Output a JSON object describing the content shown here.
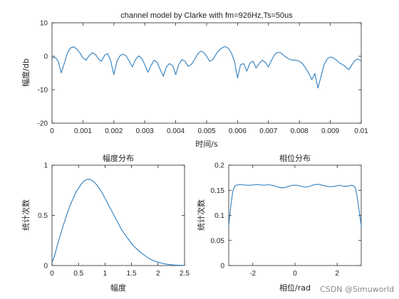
{
  "watermark": "CSDN @Simuworld",
  "colors": {
    "line": "#2f7fbf",
    "axis": "#262626",
    "background": "#ffffff"
  },
  "chart_data": [
    {
      "type": "line",
      "title": "channel model by Clarke with fm=926Hz,Ts=50us",
      "xlabel": "时间/s",
      "ylabel": "幅度/db",
      "xlim": [
        0,
        0.01
      ],
      "ylim": [
        -20,
        10
      ],
      "xticks": [
        "0",
        "0.001",
        "0.002",
        "0.003",
        "0.004",
        "0.005",
        "0.006",
        "0.007",
        "0.008",
        "0.009",
        "0.01"
      ],
      "yticks": [
        "-20",
        "-10",
        "0",
        "10"
      ],
      "grid": false,
      "series": [
        {
          "x": [
            0,
            0.0001,
            0.0002,
            0.0003,
            0.0004,
            0.0005,
            0.0006,
            0.0007,
            0.0008,
            0.0009,
            0.001,
            0.0011,
            0.0012,
            0.0013,
            0.0014,
            0.0015,
            0.0016,
            0.0017,
            0.0018,
            0.0019,
            0.002,
            0.0021,
            0.0022,
            0.0023,
            0.0024,
            0.0025,
            0.0026,
            0.0027,
            0.0028,
            0.0029,
            0.003,
            0.0031,
            0.0032,
            0.0033,
            0.0034,
            0.0035,
            0.0036,
            0.0037,
            0.0038,
            0.0039,
            0.004,
            0.0041,
            0.0042,
            0.0043,
            0.0044,
            0.0045,
            0.0046,
            0.0047,
            0.0048,
            0.0049,
            0.005,
            0.0051,
            0.0052,
            0.0053,
            0.0054,
            0.0055,
            0.0056,
            0.0057,
            0.0058,
            0.0059,
            0.006,
            0.0061,
            0.0062,
            0.0063,
            0.0064,
            0.0065,
            0.0066,
            0.0067,
            0.0068,
            0.0069,
            0.007,
            0.0071,
            0.0072,
            0.0073,
            0.0074,
            0.0075,
            0.0076,
            0.0077,
            0.0078,
            0.0079,
            0.008,
            0.0081,
            0.0082,
            0.0083,
            0.0084,
            0.0085,
            0.0086,
            0.0087,
            0.0088,
            0.0089,
            0.009,
            0.0091,
            0.0092,
            0.0093,
            0.0094,
            0.0095,
            0.0096,
            0.0097,
            0.0098,
            0.0099,
            0.01
          ],
          "y": [
            -0.5,
            -0.3,
            -1.5,
            -5,
            -2,
            1,
            2.5,
            2.8,
            2.2,
            1,
            -0.5,
            -1.2,
            0.2,
            1,
            0.6,
            -0.8,
            -1.5,
            0.3,
            0.8,
            -1.5,
            -5.5,
            -1.5,
            0.2,
            0.6,
            0.1,
            -1.5,
            -3.2,
            -1,
            0.1,
            -0.6,
            -2.5,
            -4.8,
            -2.8,
            -1.2,
            -1.8,
            -4,
            -6,
            -3.2,
            -2.2,
            -2.8,
            -5.5,
            -2.5,
            -1,
            -1.5,
            -3,
            -2.5,
            -1.2,
            0.5,
            1.5,
            1.2,
            0,
            -1.5,
            -1,
            0.5,
            1.8,
            2.5,
            2.9,
            2.4,
            1,
            -1.5,
            -6.5,
            -2.5,
            -2.2,
            -4.5,
            -2,
            -1.5,
            -3.5,
            -2.2,
            -1.2,
            -1.8,
            -3.2,
            -1.2,
            0.5,
            1.2,
            1,
            0.2,
            -0.5,
            -1,
            -1.2,
            -1.2,
            -1.5,
            -2.2,
            -3.5,
            -5,
            -7,
            -5.2,
            -9.5,
            -6,
            -2.5,
            -0.8,
            -0.2,
            -0.5,
            -1.2,
            -2,
            -2.5,
            -3.2,
            -4,
            -2.5,
            -1.2,
            -0.8,
            -1.5
          ]
        }
      ]
    },
    {
      "type": "line",
      "title": "幅度分布",
      "xlabel": "幅度",
      "ylabel": "统计次数",
      "xlim": [
        0,
        2.5
      ],
      "ylim": [
        0,
        1
      ],
      "xticks": [
        "0",
        "0.5",
        "1",
        "1.5",
        "2",
        "2.5"
      ],
      "yticks": [
        "0",
        "0.5",
        "1"
      ],
      "grid": false,
      "series": [
        {
          "x": [
            0,
            0.05,
            0.1,
            0.15,
            0.2,
            0.25,
            0.3,
            0.35,
            0.4,
            0.45,
            0.5,
            0.55,
            0.6,
            0.65,
            0.7,
            0.75,
            0.8,
            0.85,
            0.9,
            0.95,
            1,
            1.05,
            1.1,
            1.15,
            1.2,
            1.25,
            1.3,
            1.35,
            1.4,
            1.45,
            1.5,
            1.55,
            1.6,
            1.65,
            1.7,
            1.75,
            1.8,
            1.85,
            1.9,
            1.95,
            2,
            2.05,
            2.1,
            2.15,
            2.2,
            2.25,
            2.3,
            2.35,
            2.4,
            2.45,
            2.5
          ],
          "y": [
            0.03,
            0.1,
            0.2,
            0.29,
            0.38,
            0.46,
            0.54,
            0.61,
            0.67,
            0.73,
            0.77,
            0.81,
            0.84,
            0.855,
            0.86,
            0.85,
            0.83,
            0.8,
            0.76,
            0.72,
            0.67,
            0.62,
            0.57,
            0.52,
            0.47,
            0.42,
            0.37,
            0.33,
            0.29,
            0.255,
            0.22,
            0.19,
            0.165,
            0.14,
            0.12,
            0.1,
            0.08,
            0.065,
            0.052,
            0.042,
            0.033,
            0.026,
            0.02,
            0.015,
            0.011,
            0.008,
            0.006,
            0.004,
            0.003,
            0.002,
            0.0015
          ]
        }
      ]
    },
    {
      "type": "line",
      "title": "相位分布",
      "xlabel": "相位/rad",
      "ylabel": "统计次数",
      "xlim": [
        -3.1416,
        3.1416
      ],
      "ylim": [
        0,
        0.2
      ],
      "xticks": [
        "-2",
        "0",
        "2"
      ],
      "yticks": [
        "0",
        "0.05",
        "0.1",
        "0.15",
        "0.2"
      ],
      "grid": false,
      "series": [
        {
          "x": [
            -3.14,
            -3.04,
            -2.94,
            -2.84,
            -2.7,
            -2.5,
            -2.3,
            -2.1,
            -1.9,
            -1.7,
            -1.5,
            -1.3,
            -1.1,
            -0.9,
            -0.7,
            -0.5,
            -0.3,
            -0.1,
            0.1,
            0.3,
            0.5,
            0.7,
            0.9,
            1.1,
            1.3,
            1.5,
            1.7,
            1.9,
            2.1,
            2.3,
            2.5,
            2.7,
            2.84,
            2.94,
            3.04,
            3.14
          ],
          "y": [
            0.079,
            0.12,
            0.15,
            0.159,
            0.161,
            0.161,
            0.16,
            0.16,
            0.161,
            0.161,
            0.16,
            0.161,
            0.16,
            0.158,
            0.155,
            0.155,
            0.158,
            0.16,
            0.16,
            0.158,
            0.156,
            0.158,
            0.161,
            0.162,
            0.16,
            0.158,
            0.157,
            0.158,
            0.16,
            0.158,
            0.158,
            0.16,
            0.157,
            0.14,
            0.11,
            0.079
          ]
        }
      ]
    }
  ]
}
